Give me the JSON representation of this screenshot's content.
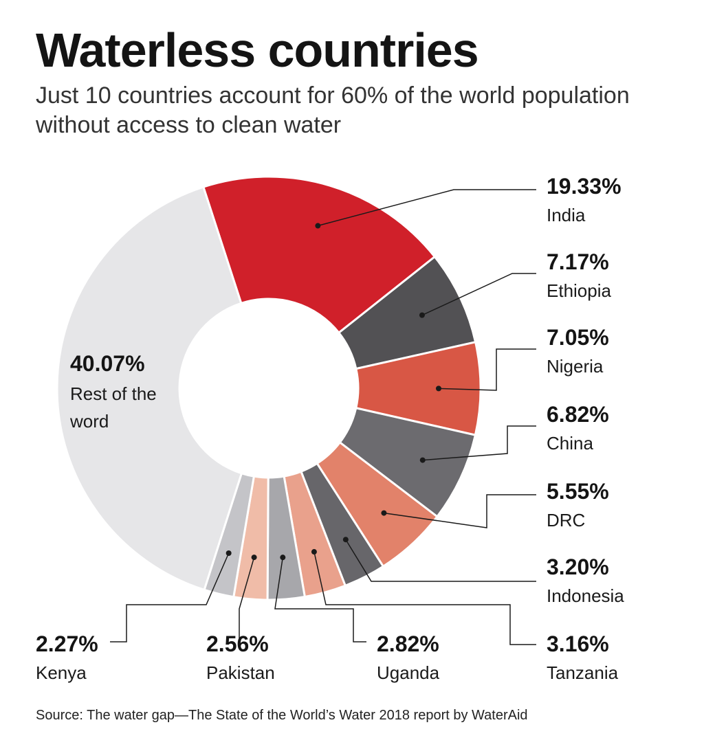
{
  "header": {
    "title": "Waterless countries",
    "subtitle": "Just 10 countries account for 60% of the world population without access to clean water"
  },
  "footer": {
    "source": "Source: The water gap—The State of the World’s Water 2018 report by WaterAid"
  },
  "chart_data": {
    "type": "pie",
    "variant": "donut",
    "title": "Waterless countries",
    "subtitle": "Just 10 countries account for 60% of the world population without access to clean water",
    "unit": "%",
    "slices": [
      {
        "label": "India",
        "value": 19.33,
        "value_label": "19.33%",
        "color": "#d0202a"
      },
      {
        "label": "Ethiopia",
        "value": 7.17,
        "value_label": "7.17%",
        "color": "#525154"
      },
      {
        "label": "Nigeria",
        "value": 7.05,
        "value_label": "7.05%",
        "color": "#d85745"
      },
      {
        "label": "China",
        "value": 6.82,
        "value_label": "6.82%",
        "color": "#6c6b6f"
      },
      {
        "label": "DRC",
        "value": 5.55,
        "value_label": "5.55%",
        "color": "#e2826a"
      },
      {
        "label": "Indonesia",
        "value": 3.2,
        "value_label": "3.20%",
        "color": "#67666a"
      },
      {
        "label": "Tanzania",
        "value": 3.16,
        "value_label": "3.16%",
        "color": "#e9a18c"
      },
      {
        "label": "Uganda",
        "value": 2.82,
        "value_label": "2.82%",
        "color": "#a7a7ab"
      },
      {
        "label": "Pakistan",
        "value": 2.56,
        "value_label": "2.56%",
        "color": "#f0bca8"
      },
      {
        "label": "Kenya",
        "value": 2.27,
        "value_label": "2.27%",
        "color": "#c4c4c8"
      },
      {
        "label": "Rest of the word",
        "value": 40.07,
        "value_label": "40.07%",
        "color": "#e6e6e8"
      }
    ]
  }
}
